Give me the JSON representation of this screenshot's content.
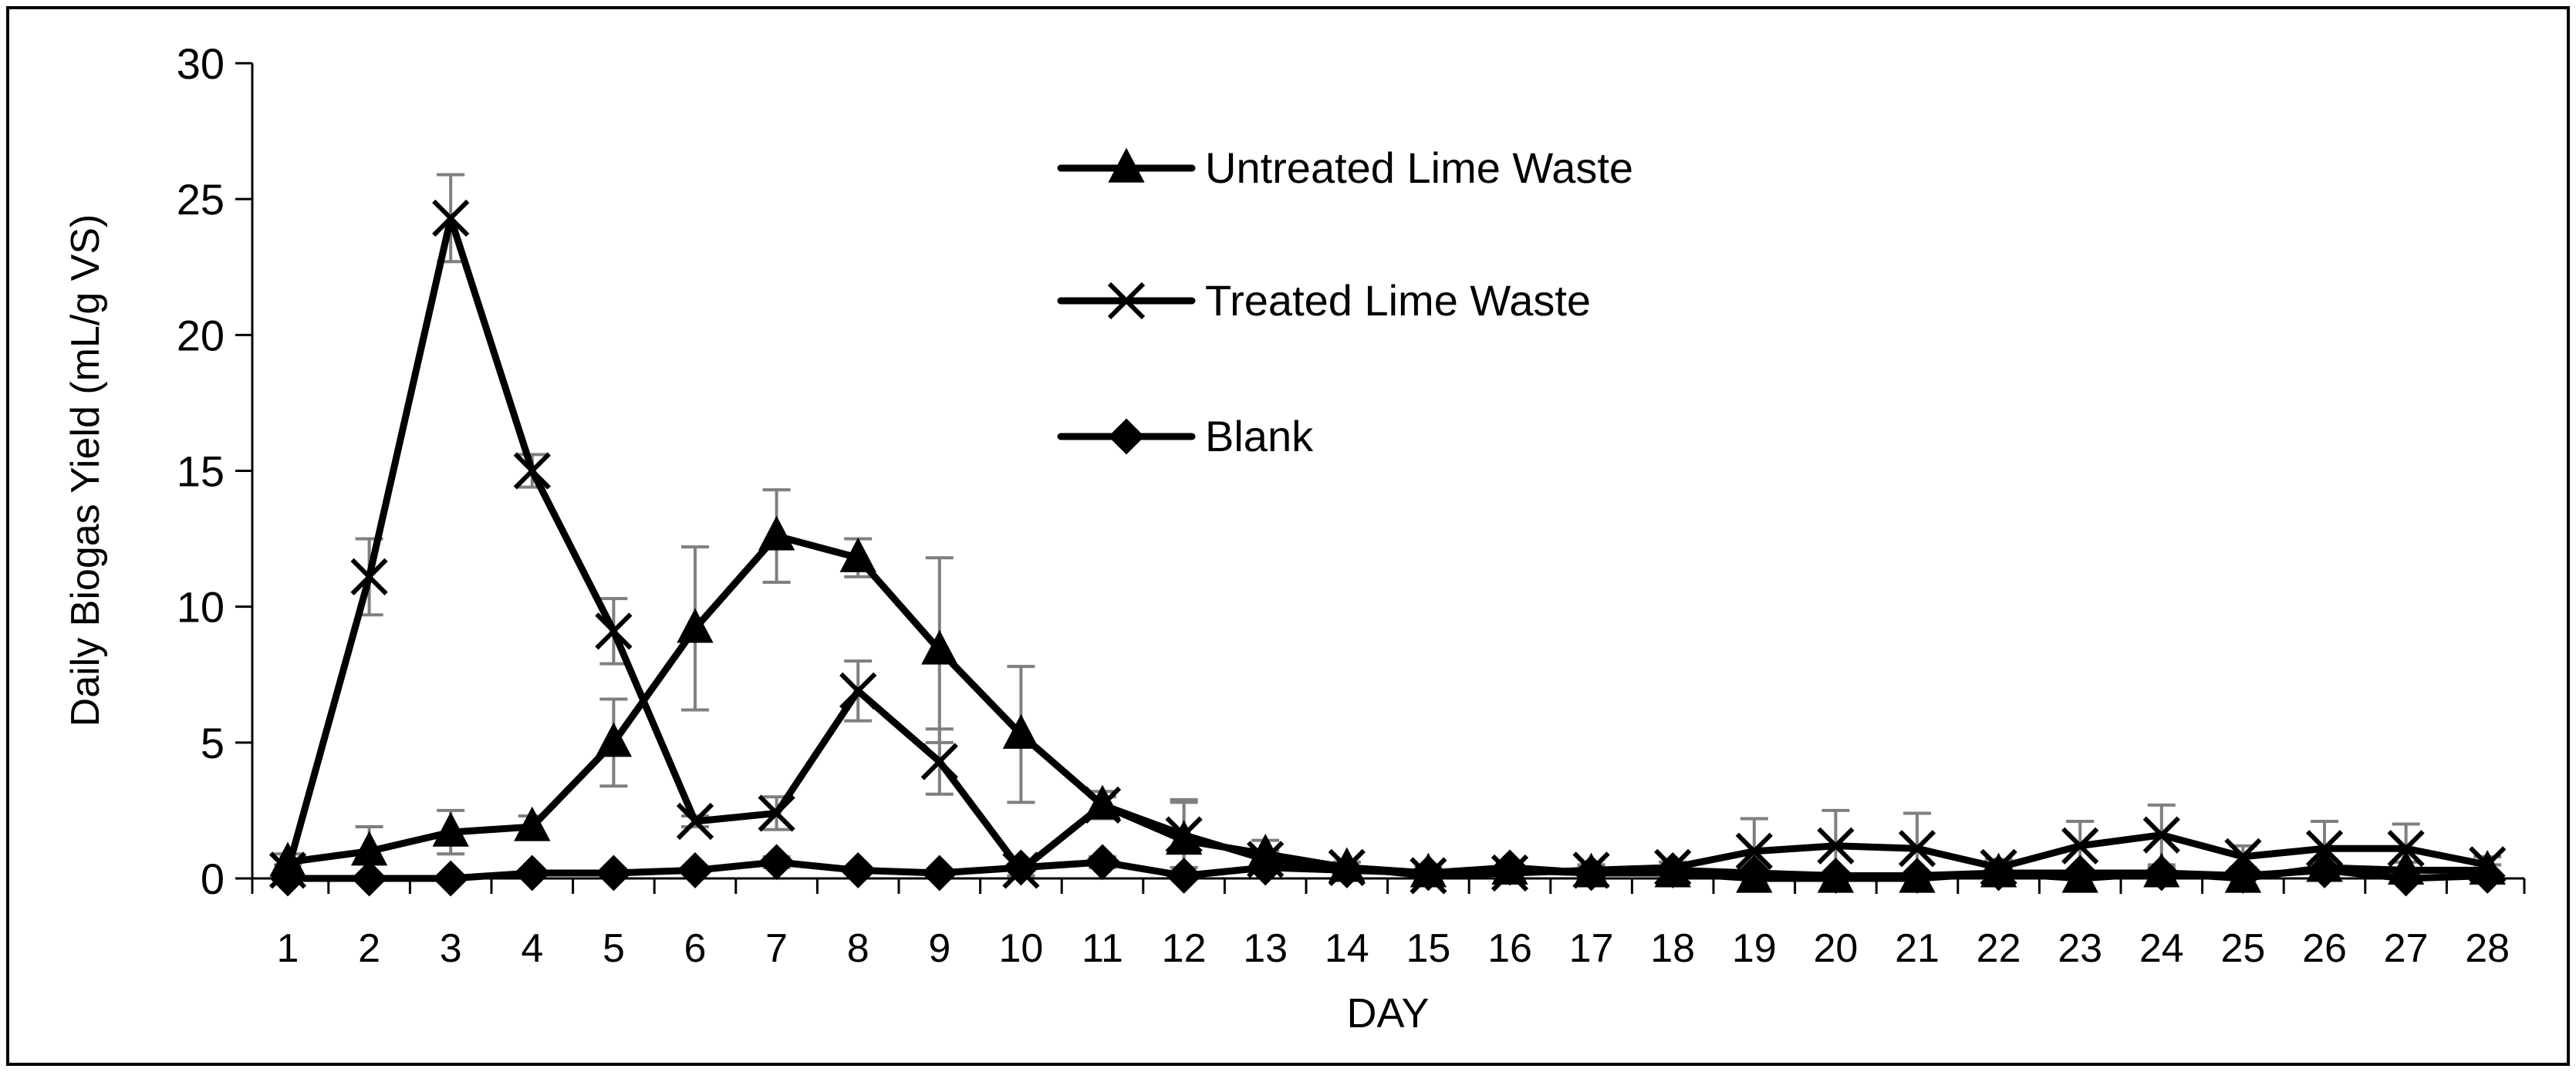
{
  "chart_data": {
    "type": "line",
    "title": "",
    "xlabel": "DAY",
    "ylabel": "Daily Biogas Yield (mL/g VS)",
    "xlim": [
      1,
      28
    ],
    "ylim": [
      0,
      30
    ],
    "yticks": [
      0,
      5,
      10,
      15,
      20,
      25,
      30
    ],
    "categories": [
      "1",
      "2",
      "3",
      "4",
      "5",
      "6",
      "7",
      "8",
      "9",
      "10",
      "11",
      "12",
      "13",
      "14",
      "15",
      "16",
      "17",
      "18",
      "19",
      "20",
      "21",
      "22",
      "23",
      "24",
      "25",
      "26",
      "27",
      "28"
    ],
    "grid": false,
    "legend_position": "top-center",
    "series": [
      {
        "name": "Untreated Lime Waste",
        "marker": "triangle",
        "color": "#000000",
        "values": [
          0.6,
          1.0,
          1.7,
          1.9,
          5.0,
          9.2,
          12.6,
          11.8,
          8.4,
          5.3,
          2.7,
          1.4,
          0.9,
          0.4,
          0.2,
          0.3,
          0.2,
          0.2,
          0.0,
          0.0,
          0.0,
          0.2,
          0.0,
          0.2,
          0.0,
          0.4,
          0.3,
          0.3
        ],
        "errors": [
          0.3,
          0.9,
          0.8,
          0.4,
          1.6,
          3.0,
          1.7,
          0.7,
          3.4,
          2.5,
          0.5,
          1.5,
          0.5,
          0.2,
          0.2,
          0.2,
          0.2,
          0.2,
          0,
          0,
          0,
          0.2,
          0,
          0.2,
          0,
          0.3,
          0.3,
          0.2
        ]
      },
      {
        "name": "Treated Lime Waste",
        "marker": "x",
        "color": "#000000",
        "values": [
          0.3,
          11.1,
          24.3,
          15.0,
          9.1,
          2.1,
          2.4,
          6.9,
          4.3,
          0.3,
          2.7,
          1.6,
          0.7,
          0.4,
          0.1,
          0.2,
          0.3,
          0.4,
          1.0,
          1.2,
          1.1,
          0.4,
          1.2,
          1.6,
          0.8,
          1.1,
          1.1,
          0.5
        ],
        "errors": [
          0.2,
          1.4,
          1.6,
          0.6,
          1.2,
          0.2,
          0.6,
          1.1,
          1.2,
          0.2,
          0.3,
          1.2,
          0.3,
          0.2,
          0.1,
          0.2,
          0.2,
          0.2,
          1.2,
          1.3,
          1.3,
          0.3,
          0.9,
          1.1,
          0.4,
          1.0,
          0.9,
          0.3
        ]
      },
      {
        "name": "Blank",
        "marker": "diamond",
        "color": "#000000",
        "values": [
          0.0,
          0.0,
          0.0,
          0.2,
          0.2,
          0.3,
          0.6,
          0.3,
          0.2,
          0.4,
          0.6,
          0.1,
          0.4,
          0.3,
          0.2,
          0.4,
          0.2,
          0.3,
          0.2,
          0.1,
          0.1,
          0.2,
          0.2,
          0.2,
          0.1,
          0.3,
          0.0,
          0.1
        ],
        "errors": [
          0.1,
          0.1,
          0.1,
          0.1,
          0.1,
          0.1,
          0.2,
          0.1,
          0.1,
          0.1,
          0.2,
          0.1,
          0.1,
          0.1,
          0.1,
          0.1,
          0.1,
          0.1,
          0.1,
          0.1,
          0.1,
          0.1,
          0.1,
          0.1,
          0.1,
          0.1,
          0.1,
          0.1
        ]
      }
    ]
  },
  "colors": {
    "line": "#000000",
    "error_bar": "#7f7f7f",
    "frame": "#000000",
    "background": "#ffffff"
  }
}
